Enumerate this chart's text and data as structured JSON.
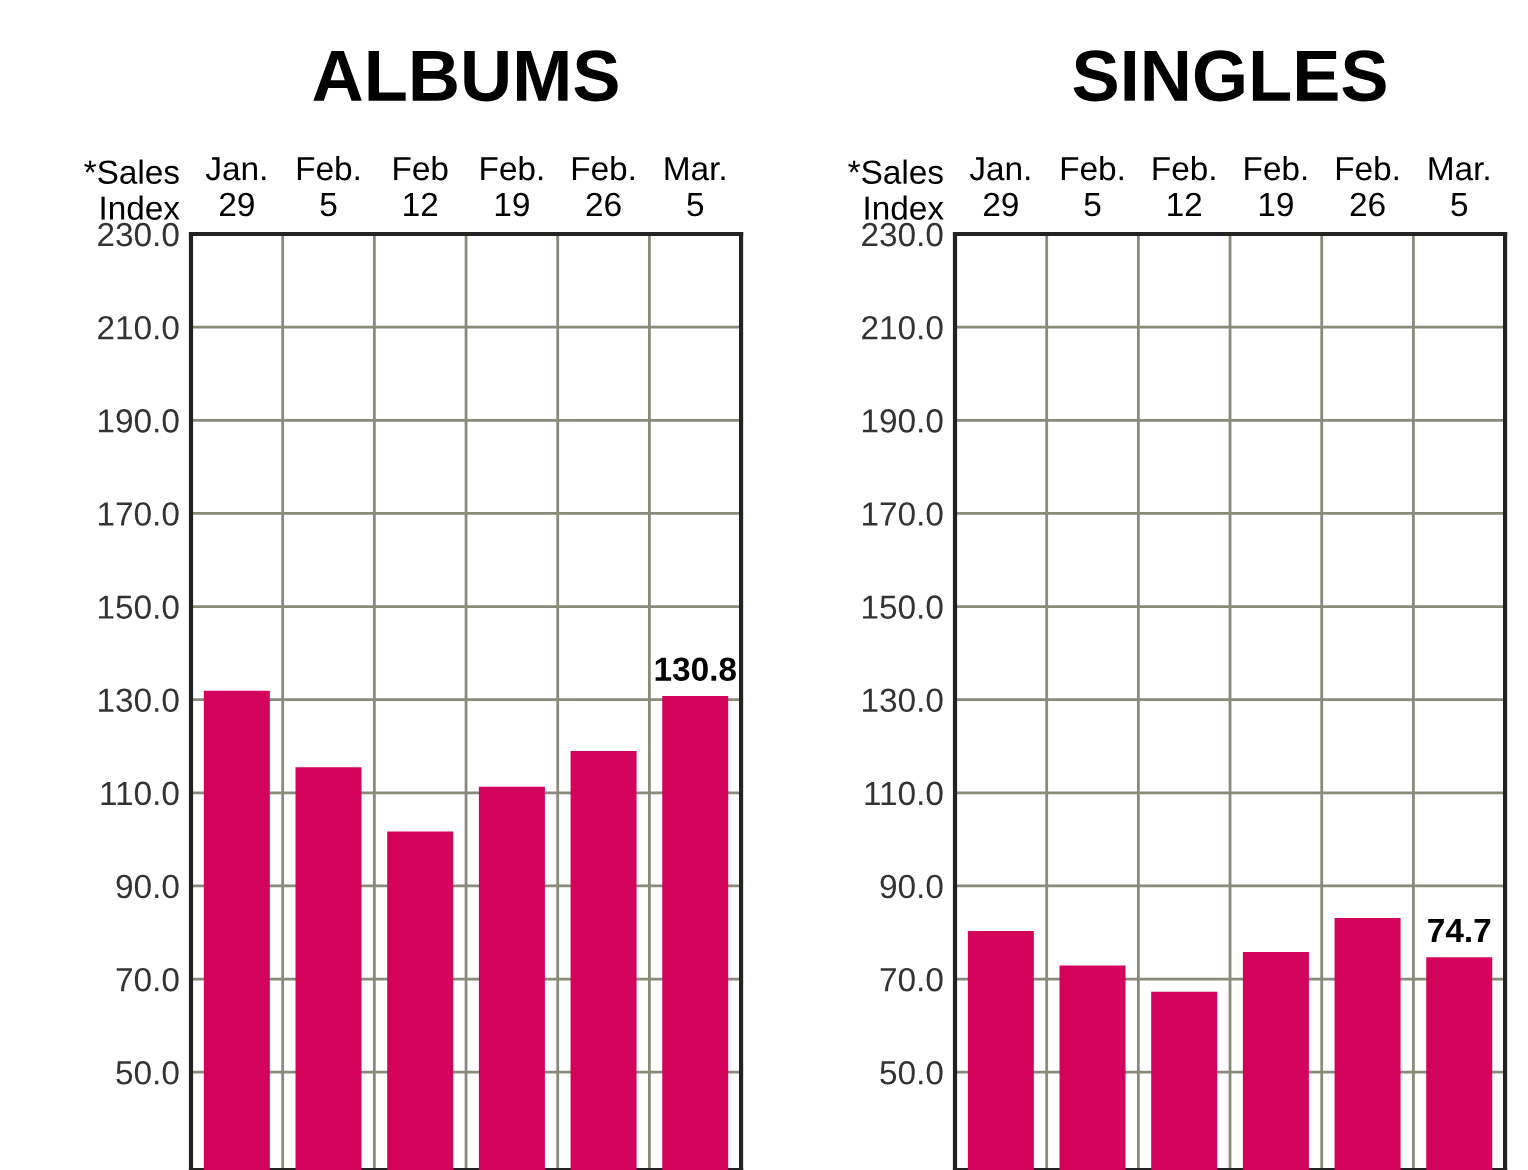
{
  "chart_data": [
    {
      "type": "bar",
      "title": "ALBUMS",
      "ylabel": "*Sales\nIndex",
      "categories": [
        "Jan.\n29",
        "Feb.\n5",
        "Feb\n12",
        "Feb.\n19",
        "Feb.\n26",
        "Mar.\n5"
      ],
      "values": [
        131.9,
        115.5,
        101.7,
        111.3,
        119.0,
        130.8
      ],
      "color": "#d3035c",
      "value_labels": [
        null,
        null,
        null,
        null,
        null,
        "130.8"
      ],
      "ylim": [
        29,
        230
      ],
      "yticks": [
        {
          "value": 50,
          "label": "50.0"
        },
        {
          "value": 70,
          "label": "70.0"
        },
        {
          "value": 90,
          "label": "90.0"
        },
        {
          "value": 110,
          "label": "110.0"
        },
        {
          "value": 130,
          "label": "130.0"
        },
        {
          "value": 150,
          "label": "150.0"
        },
        {
          "value": 170,
          "label": "170.0"
        },
        {
          "value": 190,
          "label": "190.0"
        },
        {
          "value": 210,
          "label": "210.0"
        },
        {
          "value": 230,
          "label": "230.0"
        }
      ],
      "grid": true
    },
    {
      "type": "bar",
      "title": "SINGLES",
      "ylabel": "*Sales\nIndex",
      "categories": [
        "Jan.\n29",
        "Feb.\n5",
        "Feb.\n12",
        "Feb.\n19",
        "Feb.\n26",
        "Mar.\n5"
      ],
      "values": [
        80.3,
        72.9,
        67.3,
        75.8,
        83.1,
        74.7
      ],
      "color": "#d3035c",
      "value_labels": [
        null,
        null,
        null,
        null,
        null,
        "74.7"
      ],
      "ylim": [
        29,
        230
      ],
      "yticks": [
        {
          "value": 50,
          "label": "50.0"
        },
        {
          "value": 70,
          "label": "70.0"
        },
        {
          "value": 90,
          "label": "90.0"
        },
        {
          "value": 110,
          "label": "110.0"
        },
        {
          "value": 130,
          "label": "130.0"
        },
        {
          "value": 150,
          "label": "150.0"
        },
        {
          "value": 170,
          "label": "170.0"
        },
        {
          "value": 190,
          "label": "190.0"
        },
        {
          "value": 210,
          "label": "210.0"
        },
        {
          "value": 230,
          "label": "230.0"
        }
      ],
      "grid": true
    }
  ]
}
